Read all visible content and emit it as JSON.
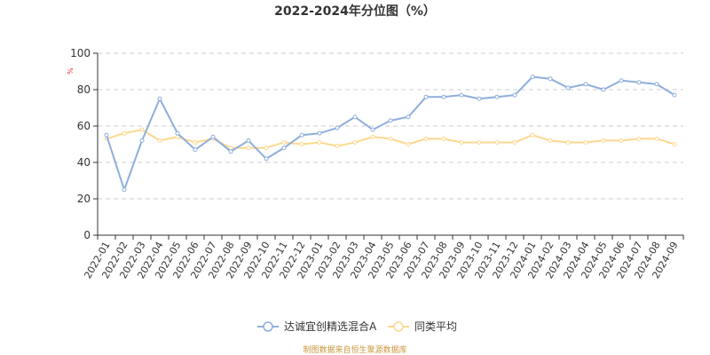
{
  "chart_data": {
    "type": "line",
    "title": "2022-2024年分位图（%）",
    "ylabel": "%",
    "xlabel": "",
    "ylim": [
      0,
      100
    ],
    "yticks": [
      0,
      20,
      40,
      60,
      80,
      100
    ],
    "grid": true,
    "legend_position": "bottom",
    "categories": [
      "2022-01",
      "2022-02",
      "2022-03",
      "2022-04",
      "2022-05",
      "2022-06",
      "2022-07",
      "2022-08",
      "2022-09",
      "2022-10",
      "2022-11",
      "2022-12",
      "2023-01",
      "2023-02",
      "2023-03",
      "2023-04",
      "2023-05",
      "2023-06",
      "2023-07",
      "2023-08",
      "2023-09",
      "2023-10",
      "2023-11",
      "2023-12",
      "2024-01",
      "2024-02",
      "2024-03",
      "2024-04",
      "2024-05",
      "2024-06",
      "2024-07",
      "2024-08",
      "2024-09"
    ],
    "series": [
      {
        "name": "达诚宜创精选混合A",
        "color": "#8eaedc",
        "values": [
          55,
          25,
          52,
          75,
          56,
          47,
          54,
          46,
          52,
          42,
          48,
          55,
          56,
          59,
          65,
          58,
          63,
          65,
          76,
          76,
          77,
          75,
          76,
          77,
          87,
          86,
          81,
          83,
          80,
          85,
          84,
          83,
          77
        ]
      },
      {
        "name": "同类平均",
        "color": "#fcd88e",
        "values": [
          53,
          56,
          58,
          52,
          54,
          51,
          53,
          48,
          48,
          48,
          51,
          50,
          51,
          49,
          51,
          54,
          53,
          50,
          53,
          53,
          51,
          51,
          51,
          51,
          55,
          52,
          51,
          51,
          52,
          52,
          53,
          53,
          50
        ]
      }
    ]
  },
  "footer": {
    "source": "制图数据来自恒生聚源数据库"
  }
}
